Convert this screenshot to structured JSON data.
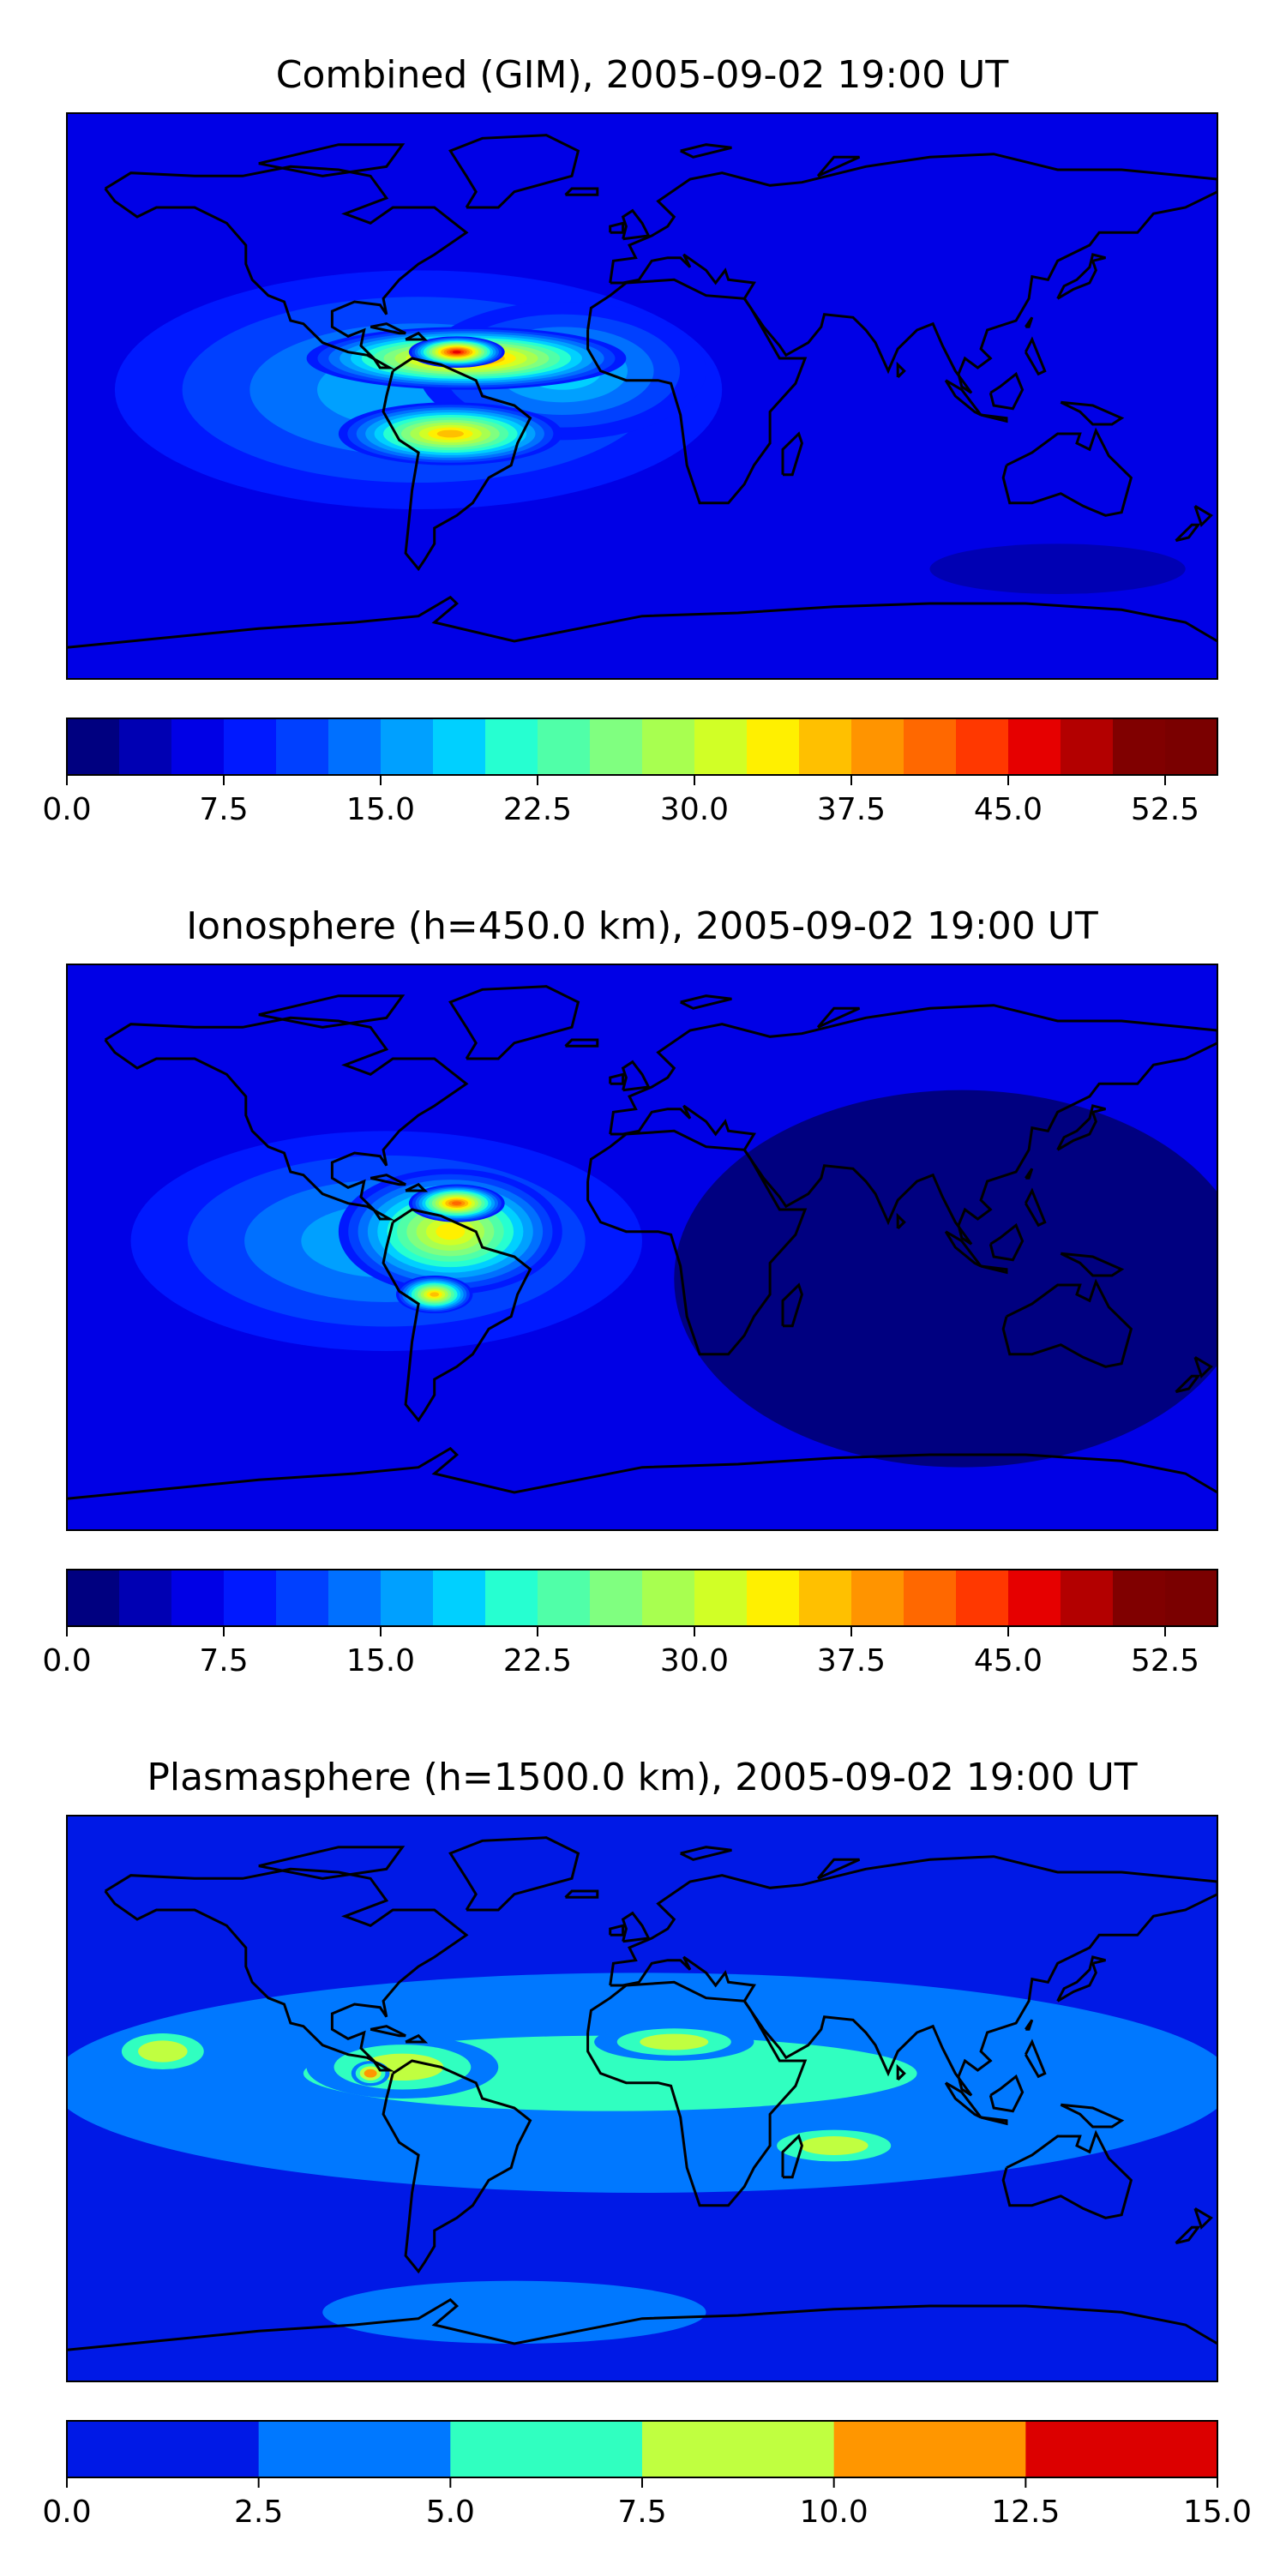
{
  "panels": [
    {
      "title": "Combined (GIM), 2005-09-02 19:00 UT",
      "colorbar": {
        "vmin": 0,
        "vmax": 55,
        "step": 2.5,
        "ticks": [
          "0.0",
          "7.5",
          "15.0",
          "22.5",
          "30.0",
          "37.5",
          "45.0",
          "52.5"
        ],
        "tick_values": [
          0,
          7.5,
          15,
          22.5,
          30,
          37.5,
          45,
          52.5
        ],
        "colors": [
          "#000080",
          "#0000b3",
          "#0000e6",
          "#0019ff",
          "#0040ff",
          "#0070ff",
          "#00a0ff",
          "#00d0ff",
          "#26ffd1",
          "#50ffa8",
          "#80ff80",
          "#a8ff50",
          "#d1ff26",
          "#fff000",
          "#ffc000",
          "#ff9400",
          "#ff6800",
          "#ff3800",
          "#e60000",
          "#b30000",
          "#800000",
          "#7a0000"
        ]
      }
    },
    {
      "title": "Ionosphere  (h=450.0 km), 2005-09-02 19:00 UT",
      "colorbar": {
        "vmin": 0,
        "vmax": 55,
        "step": 2.5,
        "ticks": [
          "0.0",
          "7.5",
          "15.0",
          "22.5",
          "30.0",
          "37.5",
          "45.0",
          "52.5"
        ],
        "tick_values": [
          0,
          7.5,
          15,
          22.5,
          30,
          37.5,
          45,
          52.5
        ],
        "colors": [
          "#000080",
          "#0000b3",
          "#0000e6",
          "#0019ff",
          "#0040ff",
          "#0070ff",
          "#00a0ff",
          "#00d0ff",
          "#26ffd1",
          "#50ffa8",
          "#80ff80",
          "#a8ff50",
          "#d1ff26",
          "#fff000",
          "#ffc000",
          "#ff9400",
          "#ff6800",
          "#ff3800",
          "#e60000",
          "#b30000",
          "#800000",
          "#7a0000"
        ]
      }
    },
    {
      "title": "Plasmasphere (h=1500.0 km), 2005-09-02 19:00 UT",
      "colorbar": {
        "vmin": 0,
        "vmax": 15,
        "step": 2.5,
        "ticks": [
          "0.0",
          "2.5",
          "5.0",
          "7.5",
          "10.0",
          "12.5",
          "15.0"
        ],
        "tick_values": [
          0,
          2.5,
          5,
          7.5,
          10,
          12.5,
          15
        ],
        "colors": [
          "#0019e6",
          "#0078ff",
          "#30ffc0",
          "#c0ff40",
          "#ff9600",
          "#dc0000"
        ]
      }
    }
  ],
  "chart_data": [
    {
      "type": "heatmap",
      "title": "Combined (GIM), 2005-09-02 19:00 UT",
      "xlabel": "",
      "ylabel": "",
      "colorbar_range": [
        0,
        55
      ],
      "x_domain_lon": [
        -180,
        180
      ],
      "y_domain_lat": [
        -90,
        90
      ],
      "background_value": 7,
      "regions": [
        {
          "name": "americas-band",
          "lon": -70,
          "lat": 2,
          "rlon": 95,
          "rlat": 38,
          "value": 17
        },
        {
          "name": "atlantic-tongue",
          "lon": -25,
          "lat": 8,
          "rlon": 45,
          "rlat": 22,
          "value": 20
        },
        {
          "name": "crest-north",
          "lon": -55,
          "lat": 12,
          "rlon": 50,
          "rlat": 10,
          "value": 42
        },
        {
          "name": "crest-south",
          "lon": -60,
          "lat": -12,
          "rlon": 35,
          "rlat": 10,
          "value": 37
        },
        {
          "name": "peak",
          "lon": -58,
          "lat": 14,
          "rlon": 15,
          "rlat": 5,
          "value": 48
        },
        {
          "name": "south-pacific-low",
          "lon": 130,
          "lat": -55,
          "rlon": 40,
          "rlat": 8,
          "value": 3
        }
      ]
    },
    {
      "type": "heatmap",
      "title": "Ionosphere  (h=450.0 km), 2005-09-02 19:00 UT",
      "xlabel": "",
      "ylabel": "",
      "colorbar_range": [
        0,
        55
      ],
      "x_domain_lon": [
        -180,
        180
      ],
      "y_domain_lat": [
        -90,
        90
      ],
      "background_value": 5,
      "regions": [
        {
          "name": "americas-band",
          "lon": -80,
          "lat": 2,
          "rlon": 80,
          "rlat": 35,
          "value": 15
        },
        {
          "name": "crest",
          "lon": -60,
          "lat": 5,
          "rlon": 35,
          "rlat": 20,
          "value": 33
        },
        {
          "name": "crest-north",
          "lon": -58,
          "lat": 14,
          "rlon": 15,
          "rlat": 6,
          "value": 40
        },
        {
          "name": "crest-south",
          "lon": -65,
          "lat": -15,
          "rlon": 12,
          "rlat": 6,
          "value": 37
        },
        {
          "name": "eastern-hemisphere-low",
          "lon": 100,
          "lat": -10,
          "rlon": 90,
          "rlat": 60,
          "value": 2
        }
      ]
    },
    {
      "type": "heatmap",
      "title": "Plasmasphere (h=1500.0 km), 2005-09-02 19:00 UT",
      "xlabel": "",
      "ylabel": "",
      "colorbar_range": [
        0,
        15
      ],
      "x_domain_lon": [
        -180,
        180
      ],
      "y_domain_lat": [
        -90,
        90
      ],
      "background_value": 1,
      "regions": [
        {
          "name": "equatorial-belt",
          "lon": 0,
          "lat": 5,
          "rlon": 185,
          "rlat": 35,
          "value": 4
        },
        {
          "name": "central-band",
          "lon": -10,
          "lat": 8,
          "rlon": 160,
          "rlat": 20,
          "value": 6
        },
        {
          "name": "pacific-blob",
          "lon": -150,
          "lat": 15,
          "rlon": 18,
          "rlat": 8,
          "value": 8.5
        },
        {
          "name": "central-america-blob",
          "lon": -75,
          "lat": 10,
          "rlon": 30,
          "rlat": 10,
          "value": 9
        },
        {
          "name": "central-america-peak",
          "lon": -85,
          "lat": 8,
          "rlon": 6,
          "rlat": 4,
          "value": 11
        },
        {
          "name": "north-africa-blob",
          "lon": 10,
          "lat": 18,
          "rlon": 25,
          "rlat": 6,
          "value": 8.5
        },
        {
          "name": "east-africa-blob",
          "lon": 60,
          "lat": -15,
          "rlon": 25,
          "rlat": 7,
          "value": 8.5
        },
        {
          "name": "antarctic-blob",
          "lon": -40,
          "lat": -68,
          "rlon": 60,
          "rlat": 10,
          "value": 4
        }
      ]
    }
  ]
}
